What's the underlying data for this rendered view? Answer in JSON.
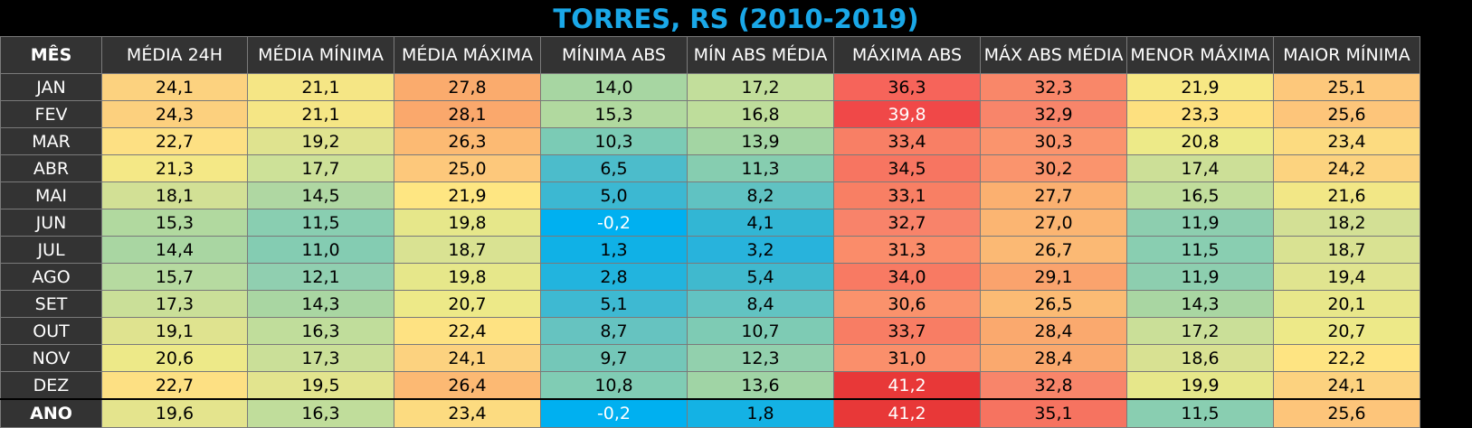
{
  "title": "TORRES, RS (2010-2019)",
  "headers": [
    "MÊS",
    "MÉDIA 24H",
    "MÉDIA MÍNIMA",
    "MÉDIA MÁXIMA",
    "MÍNIMA ABS",
    "MÍN ABS MÉDIA",
    "MÁXIMA ABS",
    "MÁX ABS MÉDIA",
    "MENOR MÁXIMA",
    "MAIOR MÍNIMA"
  ],
  "rows": [
    {
      "month": "JAN",
      "values": [
        "24,1",
        "21,1",
        "27,8",
        "14,0",
        "17,2",
        "36,3",
        "32,3",
        "21,9",
        "25,1"
      ],
      "colors": [
        "#fcd27f",
        "#f5e685",
        "#faab6d",
        "#a7d6a2",
        "#c2de9b",
        "#f6645a",
        "#f98769",
        "#f7e884",
        "#fdc87b"
      ],
      "text_colors": [
        "#000000",
        "#000000",
        "#000000",
        "#000000",
        "#000000",
        "#000000",
        "#000000",
        "#000000",
        "#000000"
      ]
    },
    {
      "month": "FEV",
      "values": [
        "24,3",
        "21,1",
        "28,1",
        "15,3",
        "16,8",
        "39,8",
        "32,9",
        "23,3",
        "25,6"
      ],
      "colors": [
        "#fcd07e",
        "#f5e685",
        "#faa86c",
        "#b1d99f",
        "#bedd9b",
        "#f04848",
        "#f8856a",
        "#fde07f",
        "#fdc57a"
      ],
      "text_colors": [
        "#000000",
        "#000000",
        "#000000",
        "#000000",
        "#000000",
        "#ffffff",
        "#000000",
        "#000000",
        "#000000"
      ]
    },
    {
      "month": "MAR",
      "values": [
        "22,7",
        "19,2",
        "26,3",
        "10,3",
        "13,9",
        "33,4",
        "30,3",
        "20,8",
        "23,4"
      ],
      "colors": [
        "#fde083",
        "#dfe38f",
        "#fcba73",
        "#7bcbb5",
        "#a3d5a3",
        "#f87f65",
        "#fa946d",
        "#edea88",
        "#fcdb80"
      ],
      "text_colors": [
        "#000000",
        "#000000",
        "#000000",
        "#000000",
        "#000000",
        "#000000",
        "#000000",
        "#000000",
        "#000000"
      ]
    },
    {
      "month": "ABR",
      "values": [
        "21,3",
        "17,7",
        "25,0",
        "6,5",
        "11,3",
        "34,5",
        "30,2",
        "17,4",
        "24,2"
      ],
      "colors": [
        "#f4e886",
        "#cde198",
        "#fdc87b",
        "#4cbccb",
        "#86cdb0",
        "#f77561",
        "#fa946d",
        "#ccdf97",
        "#fcd37f"
      ],
      "text_colors": [
        "#000000",
        "#000000",
        "#000000",
        "#000000",
        "#000000",
        "#000000",
        "#000000",
        "#000000",
        "#000000"
      ]
    },
    {
      "month": "MAI",
      "values": [
        "18,1",
        "14,5",
        "21,9",
        "5,0",
        "8,2",
        "33,1",
        "27,7",
        "16,5",
        "21,6"
      ],
      "colors": [
        "#d2e095",
        "#afd7a2",
        "#fee682",
        "#3cb8d2",
        "#60c2c2",
        "#f87f64",
        "#fbb070",
        "#c1dd9b",
        "#f2e786"
      ],
      "text_colors": [
        "#000000",
        "#000000",
        "#000000",
        "#000000",
        "#000000",
        "#000000",
        "#000000",
        "#000000",
        "#000000"
      ]
    },
    {
      "month": "JUN",
      "values": [
        "15,3",
        "11,5",
        "19,8",
        "-0,2",
        "4,1",
        "32,7",
        "27,0",
        "11,9",
        "18,2"
      ],
      "colors": [
        "#b1d99f",
        "#89ceb1",
        "#e6e78a",
        "#00b0f0",
        "#32b6d4",
        "#f8836a",
        "#fbb572",
        "#8dceaf",
        "#d3e095"
      ],
      "text_colors": [
        "#000000",
        "#000000",
        "#000000",
        "#ffffff",
        "#000000",
        "#000000",
        "#000000",
        "#000000",
        "#000000"
      ]
    },
    {
      "month": "JUL",
      "values": [
        "14,4",
        "11,0",
        "18,7",
        "1,3",
        "3,2",
        "31,3",
        "26,7",
        "11,5",
        "18,7"
      ],
      "colors": [
        "#a9d6a2",
        "#84ccb2",
        "#d9e292",
        "#10b1e6",
        "#28b3dc",
        "#fa8c6a",
        "#fbb974",
        "#89ceb1",
        "#d9e292"
      ],
      "text_colors": [
        "#000000",
        "#000000",
        "#000000",
        "#000000",
        "#000000",
        "#000000",
        "#000000",
        "#000000",
        "#000000"
      ]
    },
    {
      "month": "AGO",
      "values": [
        "15,7",
        "12,1",
        "19,8",
        "2,8",
        "5,4",
        "34,0",
        "29,1",
        "11,9",
        "19,4"
      ],
      "colors": [
        "#b6daa0",
        "#90cfb0",
        "#e6e78a",
        "#22b4de",
        "#40b9ce",
        "#f87a63",
        "#faa36d",
        "#8dceaf",
        "#e0e48f"
      ],
      "text_colors": [
        "#000000",
        "#000000",
        "#000000",
        "#000000",
        "#000000",
        "#000000",
        "#000000",
        "#000000",
        "#000000"
      ]
    },
    {
      "month": "SET",
      "values": [
        "17,3",
        "14,3",
        "20,7",
        "5,1",
        "8,4",
        "30,6",
        "26,5",
        "14,3",
        "20,1"
      ],
      "colors": [
        "#cadf98",
        "#a9d6a2",
        "#ede988",
        "#3eb9d2",
        "#62c3c2",
        "#fa926c",
        "#fbbb74",
        "#a9d6a2",
        "#e8e78a"
      ],
      "text_colors": [
        "#000000",
        "#000000",
        "#000000",
        "#000000",
        "#000000",
        "#000000",
        "#000000",
        "#000000",
        "#000000"
      ]
    },
    {
      "month": "OUT",
      "values": [
        "19,1",
        "16,3",
        "22,4",
        "8,7",
        "10,7",
        "33,7",
        "28,4",
        "17,2",
        "20,7"
      ],
      "colors": [
        "#dfe38f",
        "#c0dd9b",
        "#fee282",
        "#66c3c0",
        "#7ecbb4",
        "#f87d64",
        "#faa96e",
        "#cadf98",
        "#ede988"
      ],
      "text_colors": [
        "#000000",
        "#000000",
        "#000000",
        "#000000",
        "#000000",
        "#000000",
        "#000000",
        "#000000",
        "#000000"
      ]
    },
    {
      "month": "NOV",
      "values": [
        "20,6",
        "17,3",
        "24,1",
        "9,7",
        "12,3",
        "31,0",
        "28,4",
        "18,6",
        "22,2"
      ],
      "colors": [
        "#ede988",
        "#cadf98",
        "#fcd27f",
        "#74c7b8",
        "#92d0ad",
        "#fa8f6b",
        "#faa96e",
        "#d8e192",
        "#fee482"
      ],
      "text_colors": [
        "#000000",
        "#000000",
        "#000000",
        "#000000",
        "#000000",
        "#000000",
        "#000000",
        "#000000",
        "#000000"
      ]
    },
    {
      "month": "DEZ",
      "values": [
        "22,7",
        "19,5",
        "26,4",
        "10,8",
        "13,6",
        "41,2",
        "32,8",
        "19,9",
        "24,1"
      ],
      "colors": [
        "#fde083",
        "#e2e48e",
        "#fcb973",
        "#80ccb4",
        "#a0d4a5",
        "#e83838",
        "#f8856a",
        "#e6e78a",
        "#fcd27f"
      ],
      "text_colors": [
        "#000000",
        "#000000",
        "#000000",
        "#000000",
        "#000000",
        "#ffffff",
        "#000000",
        "#000000",
        "#000000"
      ]
    },
    {
      "month": "ANO",
      "values": [
        "19,6",
        "16,3",
        "23,4",
        "-0,2",
        "1,8",
        "41,2",
        "35,1",
        "11,5",
        "25,6"
      ],
      "colors": [
        "#e4e48d",
        "#c0dd9b",
        "#fcdb80",
        "#00b0f0",
        "#14b2e4",
        "#e83838",
        "#f67360",
        "#89ceb1",
        "#fdc57a"
      ],
      "text_colors": [
        "#000000",
        "#000000",
        "#000000",
        "#ffffff",
        "#000000",
        "#ffffff",
        "#000000",
        "#000000",
        "#000000"
      ]
    }
  ]
}
